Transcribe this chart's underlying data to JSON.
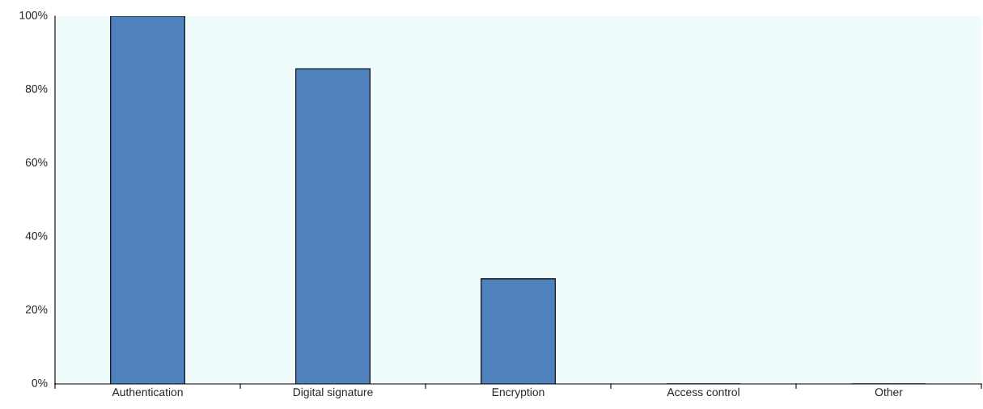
{
  "chart_data": {
    "type": "bar",
    "categories": [
      "Authentication",
      "Digital signature",
      "Encryption",
      "Access control",
      "Other"
    ],
    "values": [
      100,
      85.7,
      28.6,
      0,
      0
    ],
    "color": "#4f81bd",
    "ylim": [
      0,
      100
    ],
    "yticks": [
      {
        "value": 0,
        "label": "0%"
      },
      {
        "value": 20,
        "label": "20%"
      },
      {
        "value": 40,
        "label": "40%"
      },
      {
        "value": 60,
        "label": "60%"
      },
      {
        "value": 80,
        "label": "80%"
      },
      {
        "value": 100,
        "label": "100%"
      }
    ],
    "grid": false
  }
}
